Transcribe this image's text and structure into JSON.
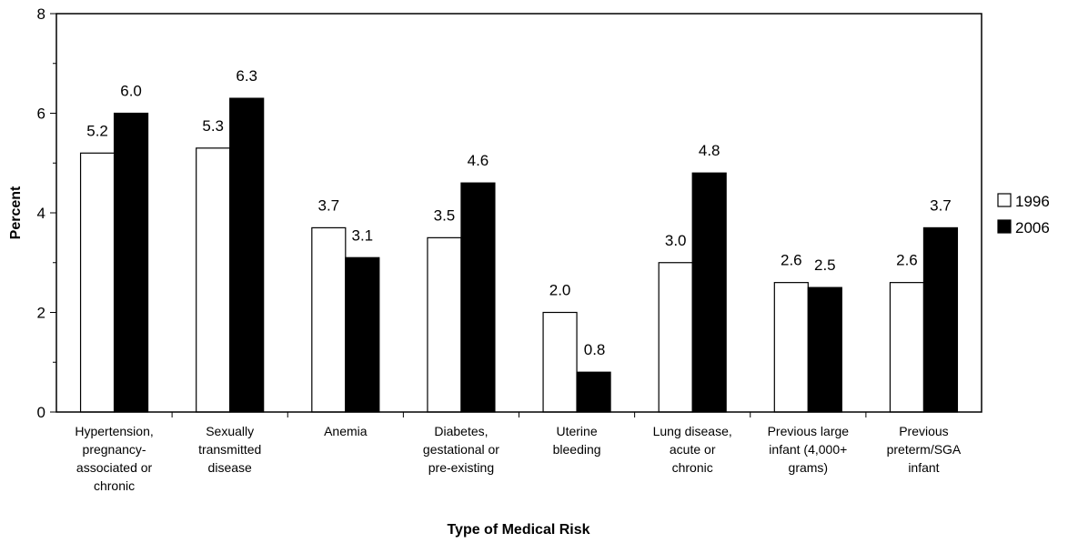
{
  "chart_data": {
    "type": "bar",
    "title": "",
    "xlabel": "Type of Medical Risk",
    "ylabel": "Percent",
    "ylim": [
      0,
      8
    ],
    "yticks": [
      "0",
      "2",
      "4",
      "6",
      "8"
    ],
    "grid": false,
    "legend_position": "right",
    "categories": [
      [
        "Hypertension,",
        "pregnancy-",
        "associated or",
        "chronic"
      ],
      [
        "Sexually",
        "transmitted",
        "disease"
      ],
      [
        "Anemia"
      ],
      [
        "Diabetes,",
        "gestational or",
        "pre-existing"
      ],
      [
        "Uterine",
        "bleeding"
      ],
      [
        "Lung disease,",
        "acute or",
        "chronic"
      ],
      [
        "Previous large",
        "infant (4,000+",
        "grams)"
      ],
      [
        "Previous",
        "preterm/SGA",
        "infant"
      ]
    ],
    "series": [
      {
        "name": "1996",
        "color": "#ffffff",
        "values": [
          5.2,
          5.3,
          3.7,
          3.5,
          2.0,
          3.0,
          2.6,
          2.6
        ],
        "labels": [
          "5.2",
          "5.3",
          "3.7",
          "3.5",
          "2.0",
          "3.0",
          "2.6",
          "2.6"
        ]
      },
      {
        "name": "2006",
        "color": "#000000",
        "values": [
          6.0,
          6.3,
          3.1,
          4.6,
          0.8,
          4.8,
          2.5,
          3.7
        ],
        "labels": [
          "6.0",
          "6.3",
          "3.1",
          "4.6",
          "0.8",
          "4.8",
          "2.5",
          "3.7"
        ]
      }
    ]
  }
}
